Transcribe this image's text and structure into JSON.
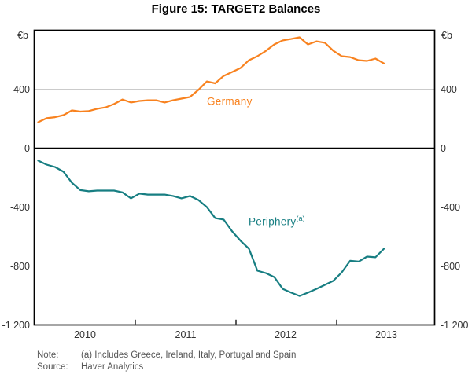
{
  "figure": {
    "title": "Figure 15: TARGET2 Balances",
    "note_label": "Note:",
    "note_text": "(a) Includes Greece, Ireland, Italy, Portugal and Spain",
    "source_label": "Source:",
    "source_text": "Haver Analytics"
  },
  "chart_data": {
    "type": "line",
    "title": "Figure 15: TARGET2 Balances",
    "unit": "€b",
    "frequency": "monthly",
    "x_start": "2010-01",
    "x_end": "2013-06",
    "x_tick_labels": [
      "2010",
      "2011",
      "2012",
      "2013"
    ],
    "y_ticks": [
      400,
      0,
      -400,
      -800,
      -1200
    ],
    "y_tick_labels": [
      "400",
      "0",
      "-400",
      "-800",
      "-1 200"
    ],
    "ylim": [
      -1200,
      800
    ],
    "grid": "horizontal-gridlines",
    "zero_line": true,
    "legend_position": "inline-labels",
    "series": [
      {
        "name": "germany",
        "label": "Germany",
        "label_superscript": "",
        "color": "#F8821F",
        "values": [
          176,
          203,
          210,
          224,
          256,
          248,
          252,
          267,
          277,
          299,
          330,
          310,
          320,
          325,
          325,
          310,
          325,
          336,
          347,
          395,
          453,
          440,
          490,
          517,
          544,
          597,
          624,
          660,
          704,
          731,
          741,
          752,
          704,
          725,
          715,
          661,
          624,
          618,
          597,
          592,
          608,
          575
        ]
      },
      {
        "name": "periphery",
        "label": "Periphery",
        "label_superscript": "(a)",
        "color": "#177E82",
        "values": [
          -85,
          -112,
          -128,
          -160,
          -235,
          -285,
          -293,
          -288,
          -288,
          -288,
          -300,
          -341,
          -309,
          -315,
          -315,
          -315,
          -325,
          -341,
          -325,
          -352,
          -400,
          -475,
          -485,
          -565,
          -629,
          -683,
          -832,
          -848,
          -875,
          -955,
          -981,
          -1003,
          -981,
          -955,
          -928,
          -901,
          -843,
          -765,
          -770,
          -736,
          -741,
          -683
        ]
      }
    ]
  },
  "colors": {
    "germany_line": "#F8821F",
    "periphery_line": "#177E82",
    "gridline": "#CBCBCB",
    "axis": "#000000",
    "tick_label_text": "#333333",
    "footer_text": "#565656",
    "background": "#FFFFFF"
  }
}
